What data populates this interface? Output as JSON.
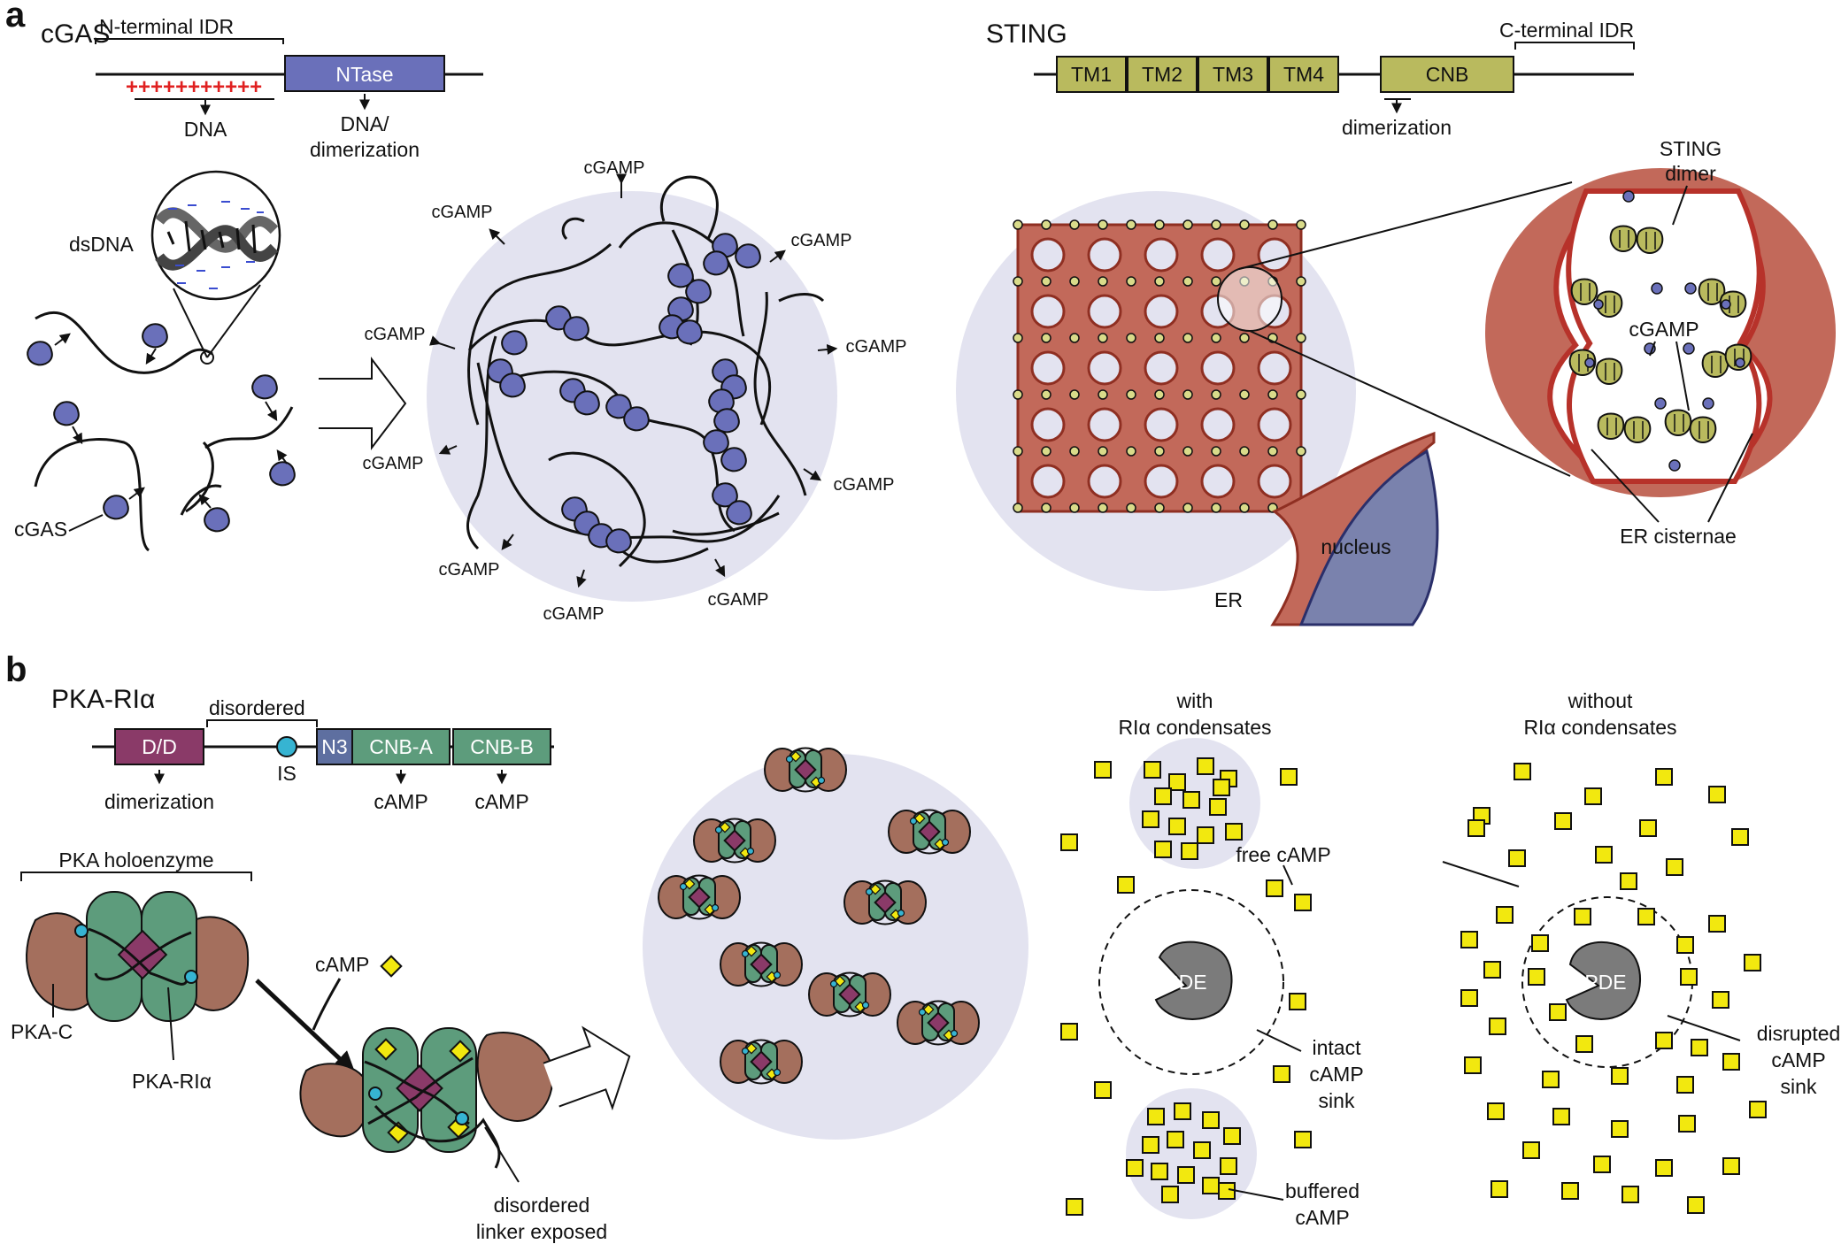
{
  "panel_a": {
    "letter": "a",
    "cgas": {
      "title": "cGAS",
      "idr_label": "N-terminal IDR",
      "charges": "+++++++++++",
      "ntase_label": "NTase",
      "dna_label": "DNA",
      "dna_dimer_label_1": "DNA/",
      "dna_dimer_label_2": "dimerization",
      "dsdna_label": "dsDNA",
      "cgas_label": "cGAS",
      "cgamp_labels": [
        "cGAMP",
        "cGAMP",
        "cGAMP",
        "cGAMP",
        "cGAMP",
        "cGAMP",
        "cGAMP",
        "cGAMP",
        "cGAMP",
        "cGAMP"
      ]
    },
    "sting": {
      "title": "STING",
      "domains": [
        "TM1",
        "TM2",
        "TM3",
        "TM4",
        "CNB"
      ],
      "idr_label": "C-terminal IDR",
      "dimerization_label": "dimerization",
      "dimer_label_1": "STING",
      "dimer_label_2": "dimer",
      "cgamp_label": "cGAMP",
      "er_cisternae_label": "ER cisternae",
      "nucleus_label": "nucleus",
      "er_label": "ER"
    }
  },
  "panel_b": {
    "letter": "b",
    "title": "PKA-RIα",
    "domains": {
      "dd": "D/D",
      "n3": "N3",
      "cnba": "CNB-A",
      "cnbb": "CNB-B"
    },
    "disordered_label": "disordered",
    "is_label": "IS",
    "dimerization_label": "dimerization",
    "camp_a": "cAMP",
    "camp_b": "cAMP",
    "holoenzyme_label": "PKA holoenzyme",
    "pkac_label": "PKA-C",
    "pkari_label": "PKA-RIα",
    "camp_label": "cAMP",
    "linker_label_1": "disordered",
    "linker_label_2": "linker exposed",
    "with_label_1": "with",
    "with_label_2": "RIα condensates",
    "without_label_1": "without",
    "without_label_2": "RIα condensates",
    "free_camp_label": "free cAMP",
    "pde_label_1": "PDE",
    "pde_label_2": "PDE",
    "intact_label": [
      "intact",
      "cAMP",
      "sink"
    ],
    "disrupted_label": [
      "disrupted",
      "cAMP",
      "sink"
    ],
    "buffered_label": [
      "buffered",
      "cAMP"
    ]
  },
  "colors": {
    "blob_bg": "#e3e3f0",
    "cgas_blue": "#6a70ba",
    "sting_olive": "#b9ba5e",
    "er_red": "#c26a58",
    "nucleus_blue": "#7a82ad",
    "dd_purple": "#8a3a68",
    "n3_blue": "#5e6fa0",
    "cnb_green": "#5d9c7c",
    "pkac_brown": "#a46f5d",
    "camp_yellow": "#f2e80f",
    "is_cyan": "#36b4d2",
    "pde_grey": "#7b7b7b"
  }
}
